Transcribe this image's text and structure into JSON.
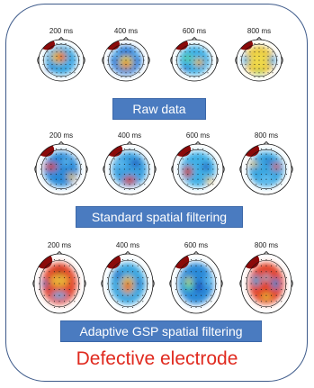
{
  "rows": [
    {
      "maps": [
        {
          "time": "200 ms",
          "palette": "raw1"
        },
        {
          "time": "400 ms",
          "palette": "raw2"
        },
        {
          "time": "600 ms",
          "palette": "raw3"
        },
        {
          "time": "800 ms",
          "palette": "raw4"
        }
      ],
      "label": "Raw data"
    },
    {
      "maps": [
        {
          "time": "200 ms",
          "palette": "std1"
        },
        {
          "time": "400 ms",
          "palette": "std2"
        },
        {
          "time": "600 ms",
          "palette": "std3"
        },
        {
          "time": "800 ms",
          "palette": "std4"
        }
      ],
      "label": "Standard spatial filtering"
    },
    {
      "maps": [
        {
          "time": "200 ms",
          "palette": "gsp1"
        },
        {
          "time": "400 ms",
          "palette": "gsp2"
        },
        {
          "time": "600 ms",
          "palette": "gsp3"
        },
        {
          "time": "800 ms",
          "palette": "gsp4"
        }
      ],
      "label": "Adaptive GSP spatial filtering"
    }
  ],
  "footer": "Defective electrode",
  "colors": {
    "frame": "#3d5a8a",
    "label_bg": "#4a7bc0",
    "label_text": "#ffffff",
    "footer_text": "#e02a1f",
    "defective_patch": "#8b0a0a"
  }
}
